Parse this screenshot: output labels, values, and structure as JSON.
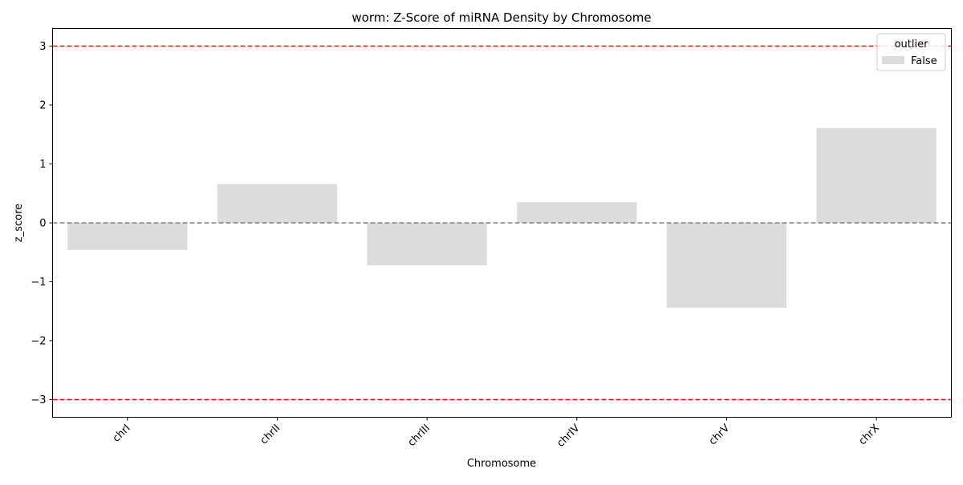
{
  "chart_data": {
    "type": "bar",
    "title": "worm: Z-Score of miRNA Density by Chromosome",
    "xlabel": "Chromosome",
    "ylabel": "z_score",
    "categories": [
      "chrI",
      "chrII",
      "chrIII",
      "chrIV",
      "chrV",
      "chrX"
    ],
    "series": [
      {
        "name": "False",
        "values": [
          -0.46,
          0.66,
          -0.72,
          0.35,
          -1.44,
          1.61
        ],
        "color": "#dcdcdc"
      }
    ],
    "ylim": [
      -3.3,
      3.3
    ],
    "yticks": [
      -3,
      -2,
      -1,
      0,
      1,
      2,
      3
    ],
    "ytick_labels": [
      "−3",
      "−2",
      "−1",
      "0",
      "1",
      "2",
      "3"
    ],
    "reference_lines": [
      {
        "y": 3,
        "color": "#ff0000",
        "style": "dashed"
      },
      {
        "y": -3,
        "color": "#ff0000",
        "style": "dashed"
      },
      {
        "y": 0,
        "color": "#808080",
        "style": "dashed"
      }
    ],
    "legend": {
      "title": "outlier",
      "position": "top-right",
      "entries": [
        "False"
      ]
    },
    "grid": false
  }
}
